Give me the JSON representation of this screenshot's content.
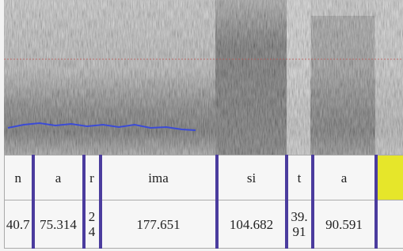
{
  "table": {
    "rows": [
      [
        "n",
        "a",
        "r",
        "ima",
        "si",
        "t",
        "a"
      ],
      [
        "40.7",
        "75.314",
        "24",
        "177.651",
        "104.682",
        "39.91",
        "90.591"
      ]
    ]
  }
}
